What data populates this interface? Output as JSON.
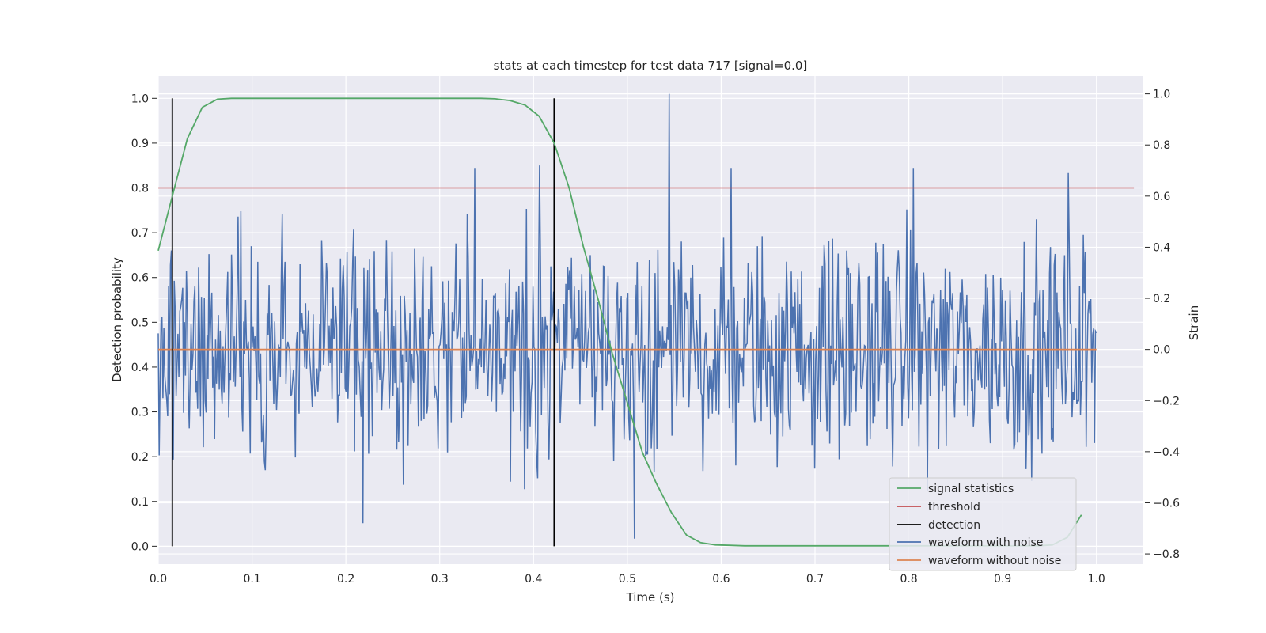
{
  "chart_data": {
    "type": "line",
    "title": "stats at each timestep for test data 717 [signal=0.0]",
    "xlabel": "Time (s)",
    "ylabel_left": "Detection probability",
    "ylabel_right": "Strain",
    "xlim": [
      0.0,
      1.05
    ],
    "ylim_left": [
      -0.04,
      1.05
    ],
    "ylim_right": [
      -0.84,
      1.07
    ],
    "x_ticks": [
      0.0,
      0.1,
      0.2,
      0.3,
      0.4,
      0.5,
      0.6,
      0.7,
      0.8,
      0.9,
      1.0
    ],
    "x_tick_labels": [
      "0.0",
      "0.1",
      "0.2",
      "0.3",
      "0.4",
      "0.5",
      "0.6",
      "0.7",
      "0.8",
      "0.9",
      "1.0"
    ],
    "y_left_ticks": [
      0.0,
      0.1,
      0.2,
      0.3,
      0.4,
      0.5,
      0.6,
      0.7,
      0.8,
      0.9,
      1.0
    ],
    "y_left_tick_labels": [
      "0.0",
      "0.1",
      "0.2",
      "0.3",
      "0.4",
      "0.5",
      "0.6",
      "0.7",
      "0.8",
      "0.9",
      "1.0"
    ],
    "y_right_ticks": [
      -0.8,
      -0.6,
      -0.4,
      -0.2,
      0.0,
      0.2,
      0.4,
      0.6,
      0.8,
      1.0
    ],
    "y_right_tick_labels": [
      "−0.8",
      "−0.6",
      "−0.4",
      "−0.2",
      "0.0",
      "0.2",
      "0.4",
      "0.6",
      "0.8",
      "1.0"
    ],
    "grid": true,
    "legend_position": "lower-right",
    "series": [
      {
        "name": "signal statistics",
        "axis": "left",
        "color": "#55a868",
        "x": [
          0.0,
          0.016,
          0.031,
          0.047,
          0.063,
          0.078,
          0.094,
          0.109,
          0.125,
          0.141,
          0.156,
          0.172,
          0.188,
          0.203,
          0.219,
          0.234,
          0.25,
          0.266,
          0.281,
          0.297,
          0.313,
          0.328,
          0.344,
          0.359,
          0.375,
          0.391,
          0.406,
          0.422,
          0.438,
          0.453,
          0.469,
          0.484,
          0.5,
          0.516,
          0.531,
          0.547,
          0.563,
          0.578,
          0.594,
          0.609,
          0.625,
          0.641,
          0.656,
          0.672,
          0.688,
          0.703,
          0.719,
          0.734,
          0.75,
          0.766,
          0.781,
          0.797,
          0.813,
          0.828,
          0.844,
          0.859,
          0.875,
          0.891,
          0.906,
          0.922,
          0.938,
          0.953,
          0.969,
          0.984
        ],
        "y": [
          0.66,
          0.79,
          0.91,
          0.98,
          0.998,
          1.0,
          1.0,
          1.0,
          1.0,
          1.0,
          1.0,
          1.0,
          1.0,
          1.0,
          1.0,
          1.0,
          1.0,
          1.0,
          1.0,
          1.0,
          1.0,
          1.0,
          1.0,
          0.999,
          0.995,
          0.985,
          0.96,
          0.9,
          0.8,
          0.67,
          0.55,
          0.43,
          0.32,
          0.21,
          0.14,
          0.075,
          0.025,
          0.008,
          0.003,
          0.002,
          0.001,
          0.001,
          0.001,
          0.001,
          0.001,
          0.001,
          0.001,
          0.001,
          0.001,
          0.001,
          0.001,
          0.001,
          0.001,
          0.001,
          0.001,
          0.001,
          0.001,
          0.001,
          0.001,
          0.001,
          0.001,
          0.003,
          0.02,
          0.07
        ]
      },
      {
        "name": "threshold",
        "axis": "left",
        "color": "#c44e52",
        "x": [
          0.0,
          1.04
        ],
        "y": [
          0.8,
          0.8
        ]
      },
      {
        "name": "detection",
        "axis": "left",
        "color": "#000000",
        "segments": [
          {
            "x": 0.015,
            "y": [
              0.0,
              1.0
            ]
          },
          {
            "x": 0.422,
            "y": [
              0.0,
              1.0
            ]
          }
        ]
      },
      {
        "name": "waveform with noise",
        "axis": "right",
        "color": "#4c72b0",
        "x_range": [
          0.0,
          1.0
        ],
        "y_range": [
          -0.74,
          1.0
        ],
        "points": 1000,
        "peaks": [
          {
            "x": 0.545,
            "y": 1.0
          },
          {
            "x": 0.508,
            "y": -0.74
          },
          {
            "x": 0.406,
            "y": 0.72
          },
          {
            "x": 0.337,
            "y": 0.71
          },
          {
            "x": 0.805,
            "y": 0.71
          },
          {
            "x": 0.611,
            "y": 0.71
          },
          {
            "x": 0.97,
            "y": 0.69
          },
          {
            "x": 0.218,
            "y": -0.68
          }
        ]
      },
      {
        "name": "waveform without noise",
        "axis": "right",
        "color": "#dd8452",
        "x": [
          0.0,
          1.0
        ],
        "y": [
          0.0,
          0.0
        ]
      }
    ]
  }
}
